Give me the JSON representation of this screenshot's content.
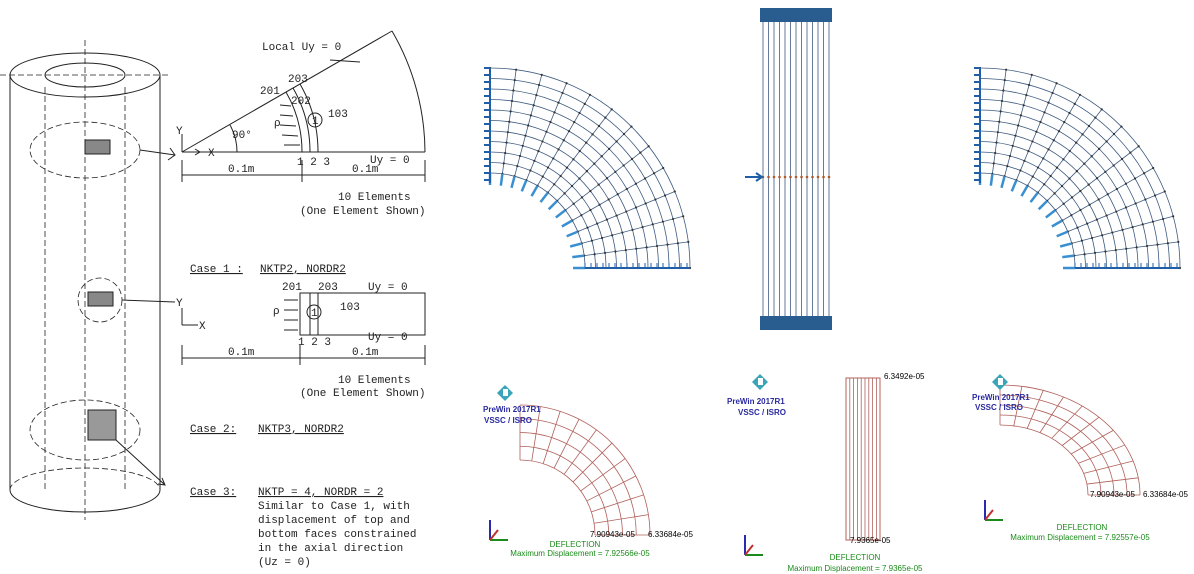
{
  "left_figure": {
    "sector_diagram": {
      "boundary_top": "Local Uy = 0",
      "node_203": "203",
      "node_201": "201",
      "node_202": "202",
      "node_103": "103",
      "element": "1",
      "pressure": "ρ",
      "axis_y": "Y",
      "axis_x": "X",
      "angle": "90°",
      "bottom_nodes": "1 2 3",
      "boundary_bottom": "Uy = 0",
      "dim_left": "0.1m",
      "dim_right": "0.1m",
      "elements_note": "10 Elements",
      "shown_note": "(One Element Shown)"
    },
    "case1": {
      "label": "Case 1 :",
      "value": "NKTP2, NORDR2"
    },
    "rect_diagram": {
      "node_201": "201",
      "node_203": "203",
      "boundary_top": "Uy = 0",
      "element": "1",
      "node_103": "103",
      "pressure": "ρ",
      "axis_y": "Y",
      "axis_x": "X",
      "bottom_nodes": "1 2 3",
      "boundary_bottom": "Uy = 0",
      "dim_left": "0.1m",
      "dim_right": "0.1m",
      "elements_note": "10 Elements",
      "shown_note": "(One Element Shown)"
    },
    "case2": {
      "label": "Case 2:",
      "value": "NKTP3, NORDR2"
    },
    "case3": {
      "label": "Case 3:",
      "value": "NKTP = 4, NORDR = 2",
      "description": [
        "Similar to Case 1, with",
        "displacement of top and",
        "bottom faces constrained",
        "in the axial direction",
        "(Uz = 0)"
      ]
    }
  },
  "result_panels": [
    {
      "brand": "PreWin 2017R1",
      "org": "VSSC / ISRO",
      "min_label": "7.90943e-05",
      "max_label": "6.33684e-05",
      "title": "DEFLECTION",
      "max_displacement": "Maximum Displacement = 7.92566e-05"
    },
    {
      "brand": "PreWin 2017R1",
      "org": "VSSC / ISRO",
      "min_label": "7.9365e-05",
      "max_label": "6.3492e-05",
      "title": "DEFLECTION",
      "max_displacement": "Maximum Displacement = 7.9365e-05"
    },
    {
      "brand": "PreWin 2017R1",
      "org": "VSSC / ISRO",
      "min_label": "7.90943e-05",
      "max_label": "6.33684e-05",
      "title": "DEFLECTION",
      "max_displacement": "Maximum Displacement = 7.92557e-05"
    }
  ]
}
